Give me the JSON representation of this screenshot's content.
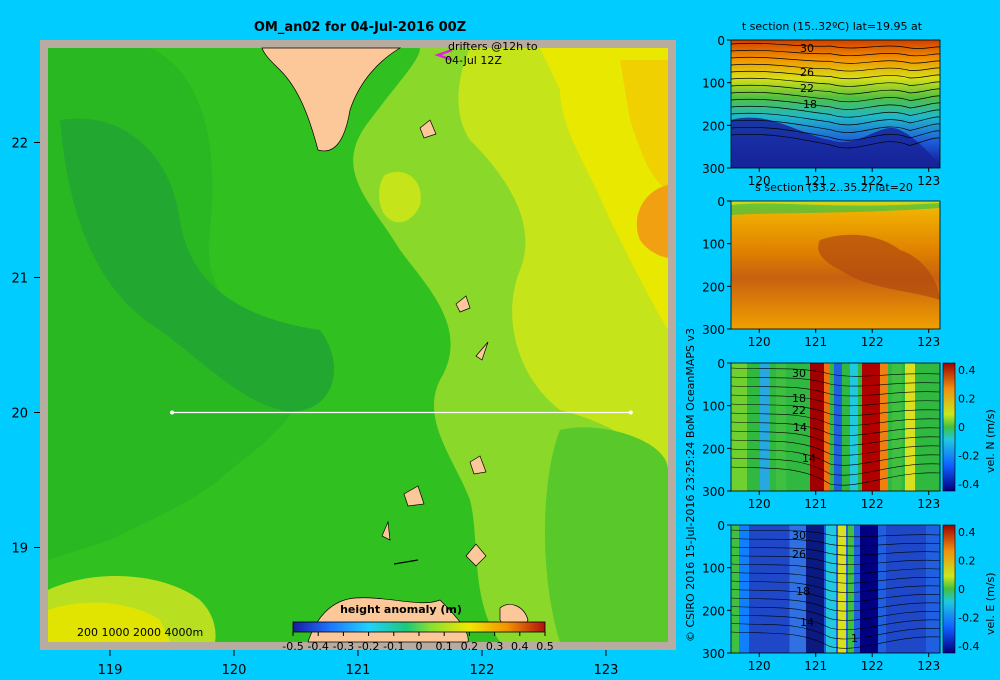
{
  "main_map": {
    "title": "OM_an02 for 04-Jul-2016 00Z",
    "drifter_note_line1": "drifters @12h to",
    "drifter_note_line2": "04-Jul 12Z",
    "x_ticks": [
      "119",
      "120",
      "121",
      "122",
      "123"
    ],
    "y_ticks": [
      "22",
      "21",
      "20",
      "19"
    ],
    "depth_legend": "200 1000 2000 4000m",
    "colorbar": {
      "label": "height anomaly (m)",
      "ticks": [
        "-0.5",
        "-0.4",
        "-0.3",
        "-0.2",
        "-0.1",
        "0",
        "0.1",
        "0.2",
        "0.3",
        "0.4",
        "0.5"
      ]
    },
    "section_line": {
      "lat": 20,
      "lon_start": 119.5,
      "lon_end": 123.2
    }
  },
  "credit": "© CSIRO 2016   15-Jul-2016 23:25:24 BoM OceanMAPS v3",
  "chart_data": [
    {
      "type": "heatmap",
      "title": "OM_an02 for 04-Jul-2016 00Z",
      "xlim": [
        118.5,
        123.5
      ],
      "ylim": [
        18.3,
        22.7
      ],
      "colorbar_label": "height anomaly (m)",
      "colorbar_range": [
        -0.5,
        0.5
      ]
    },
    {
      "type": "heatmap",
      "title": "t section (15..32ºC) lat=19.95 at",
      "x_ticks": [
        "120",
        "121",
        "122",
        "123"
      ],
      "y_ticks": [
        "0",
        "100",
        "200",
        "300"
      ],
      "contour_labels": [
        "30",
        "26",
        "22",
        "18"
      ]
    },
    {
      "type": "heatmap",
      "title": "s section (33.2..35.2) lat=20",
      "x_ticks": [
        "120",
        "121",
        "122",
        "123"
      ],
      "y_ticks": [
        "0",
        "100",
        "200",
        "300"
      ]
    },
    {
      "type": "heatmap",
      "colorbar_label": "vel. N (m/s)",
      "x_ticks": [
        "120",
        "121",
        "122",
        "123"
      ],
      "y_ticks": [
        "0",
        "100",
        "200",
        "300"
      ],
      "colorbar_ticks": [
        "0.4",
        "0.2",
        "0",
        "-0.2",
        "-0.4"
      ],
      "contour_labels": [
        "30",
        "22",
        "18",
        "14",
        "14"
      ]
    },
    {
      "type": "heatmap",
      "colorbar_label": "vel. E (m/s)",
      "x_ticks": [
        "120",
        "121",
        "122",
        "123"
      ],
      "y_ticks": [
        "0",
        "100",
        "200",
        "300"
      ],
      "colorbar_ticks": [
        "0.4",
        "0.2",
        "0",
        "-0.2",
        "-0.4"
      ],
      "contour_labels": [
        "30",
        "26",
        "18",
        "14",
        "1"
      ]
    }
  ]
}
